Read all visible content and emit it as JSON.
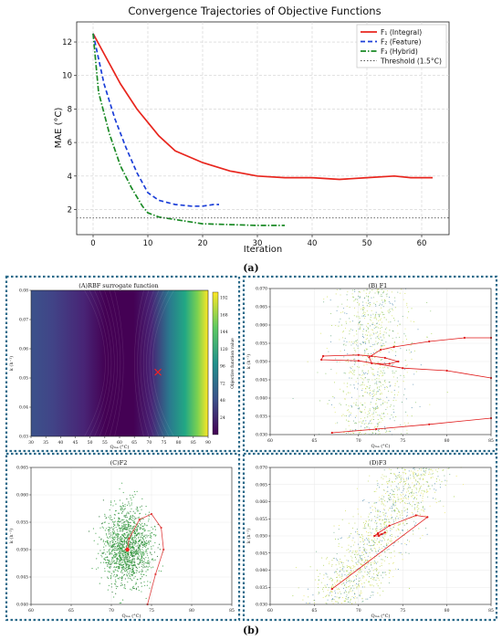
{
  "figure_labels": {
    "a": "(a)",
    "b": "(b)"
  },
  "chart_data": [
    {
      "type": "line",
      "title": "Convergence Trajectories of Objective Functions",
      "xlabel": "Iteration",
      "ylabel": "MAE (°C)",
      "xlim": [
        -3,
        65
      ],
      "ylim": [
        0.5,
        13.2
      ],
      "xticks": [
        0,
        10,
        20,
        30,
        40,
        50,
        60
      ],
      "yticks": [
        2,
        4,
        6,
        8,
        10,
        12
      ],
      "grid": true,
      "legend": "top-right",
      "series": [
        {
          "name": "F₁ (Integral)",
          "color": "#e8261e",
          "dash": "solid",
          "x": [
            0,
            2,
            5,
            8,
            10,
            12,
            15,
            20,
            25,
            30,
            35,
            40,
            45,
            50,
            55,
            58,
            62
          ],
          "y": [
            12.5,
            11.3,
            9.5,
            8.0,
            7.2,
            6.4,
            5.5,
            4.8,
            4.3,
            4.0,
            3.9,
            3.9,
            3.8,
            3.9,
            4.0,
            3.9,
            3.9
          ]
        },
        {
          "name": "F₂ (Feature)",
          "color": "#1c3fd8",
          "dash": "dashed",
          "x": [
            0,
            2,
            4,
            6,
            8,
            10,
            12,
            15,
            18,
            20,
            22,
            23
          ],
          "y": [
            12.5,
            9.5,
            7.4,
            5.7,
            4.2,
            3.0,
            2.55,
            2.3,
            2.2,
            2.2,
            2.3,
            2.3
          ]
        },
        {
          "name": "F₃ (Hybrid)",
          "color": "#1a8a25",
          "dash": "dashdot",
          "x": [
            0,
            1,
            3,
            5,
            7,
            9,
            10,
            12,
            15,
            20,
            25,
            30,
            35
          ],
          "y": [
            12.5,
            9.0,
            6.5,
            4.6,
            3.3,
            2.2,
            1.8,
            1.55,
            1.4,
            1.15,
            1.1,
            1.05,
            1.05
          ]
        },
        {
          "name": "Threshold (1.5°C)",
          "color": "#555555",
          "dash": "dotted",
          "x": [
            -3,
            65
          ],
          "y": [
            1.5,
            1.5
          ]
        }
      ]
    },
    {
      "type": "heatmap",
      "title": "(A)RBF surrogate function",
      "xlabel": "Qₘₐ (°C)",
      "ylabel": "k (h⁻¹)",
      "xlim": [
        30,
        90
      ],
      "ylim": [
        0.03,
        0.08
      ],
      "xticks": [
        30,
        35,
        40,
        45,
        50,
        55,
        60,
        65,
        70,
        75,
        80,
        85,
        90
      ],
      "yticks": [
        0.03,
        0.04,
        0.05,
        0.06,
        0.07,
        0.08
      ],
      "colorbar_label": "Objective function value",
      "colorbar_ticks": [
        24,
        48,
        72,
        96,
        120,
        144,
        168,
        192
      ],
      "minimum_marker": {
        "x": 73,
        "y": 0.052
      }
    },
    {
      "type": "scatter",
      "title": "(B) F1",
      "xlabel": "Qₘₐ (°C)",
      "ylabel": "k (h⁻¹)",
      "xlim": [
        60,
        85
      ],
      "ylim": [
        0.03,
        0.07
      ],
      "xticks": [
        60,
        65,
        70,
        75,
        80,
        85
      ],
      "yticks": [
        0.03,
        0.035,
        0.04,
        0.045,
        0.05,
        0.055,
        0.06,
        0.065,
        0.07
      ],
      "trajectory": {
        "x": [
          85,
          82,
          78,
          74,
          72.5,
          71.2,
          71.5,
          73.5,
          74.5,
          73,
          71.5,
          70,
          66,
          65.8,
          70,
          75,
          80,
          85
        ],
        "y": [
          0.0565,
          0.0565,
          0.0555,
          0.054,
          0.0532,
          0.0512,
          0.0495,
          0.0494,
          0.05,
          0.051,
          0.0515,
          0.0518,
          0.0515,
          0.0505,
          0.0502,
          0.0482,
          0.0475,
          0.0455
        ]
      },
      "lower_trajectory": {
        "x": [
          67,
          72,
          78,
          85
        ],
        "y": [
          0.0305,
          0.0315,
          0.0328,
          0.0345
        ]
      }
    },
    {
      "type": "scatter",
      "title": "(C)F2",
      "xlabel": "Qₘₐ (°C)",
      "ylabel": "k (h⁻¹)",
      "xlim": [
        60,
        85
      ],
      "ylim": [
        0.04,
        0.065
      ],
      "xticks": [
        60,
        65,
        70,
        75,
        80,
        85
      ],
      "yticks": [
        0.04,
        0.045,
        0.05,
        0.055,
        0.06,
        0.065
      ],
      "trajectory": {
        "x": [
          74.5,
          75.5,
          76.5,
          76.2,
          75,
          73.5,
          72.2,
          72
        ],
        "y": [
          0.04,
          0.0455,
          0.05,
          0.054,
          0.0565,
          0.0555,
          0.052,
          0.05
        ]
      }
    },
    {
      "type": "scatter",
      "title": "(D)F3",
      "xlabel": "Qₘₐ (°C)",
      "ylabel": "k (h⁻¹)",
      "xlim": [
        60,
        85
      ],
      "ylim": [
        0.03,
        0.07
      ],
      "xticks": [
        60,
        65,
        70,
        75,
        80,
        85
      ],
      "yticks": [
        0.03,
        0.035,
        0.04,
        0.045,
        0.05,
        0.055,
        0.06,
        0.065,
        0.07
      ],
      "trajectory": {
        "x": [
          67,
          77.8,
          76.5,
          73.5,
          72.2,
          71.8,
          72.3,
          73,
          72.6,
          72.2
        ],
        "y": [
          0.0345,
          0.0555,
          0.056,
          0.053,
          0.0508,
          0.05,
          0.05,
          0.051,
          0.0505,
          0.0505
        ]
      }
    }
  ]
}
